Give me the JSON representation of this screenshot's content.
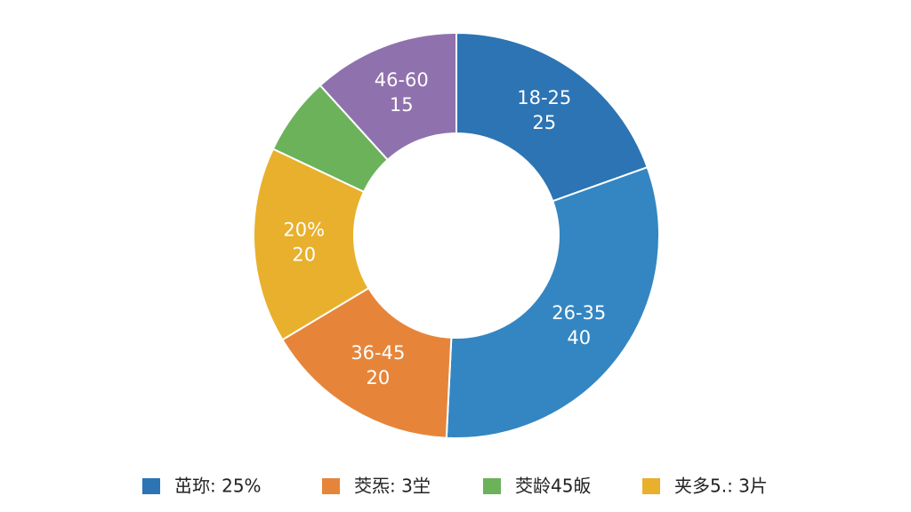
{
  "chart_data": {
    "type": "donut",
    "categories": [
      "18-25",
      "26-35",
      "36-45",
      "20%",
      null,
      "46-60"
    ],
    "values": [
      25,
      40,
      20,
      20,
      8,
      15
    ],
    "colors": [
      "#2c74b4",
      "#3386c2",
      "#e6853a",
      "#e8b02c",
      "#6bb25a",
      "#8f72ad"
    ],
    "legend": [
      {
        "label": "茁珎: 25%",
        "color": "#2c74b4"
      },
      {
        "label": "茭炁: 3坣",
        "color": "#e6853a"
      },
      {
        "label": "茭龄45皈",
        "color": "#6bb25a"
      },
      {
        "label": "夹多5.: 3片",
        "color": "#e8b02c"
      }
    ]
  }
}
